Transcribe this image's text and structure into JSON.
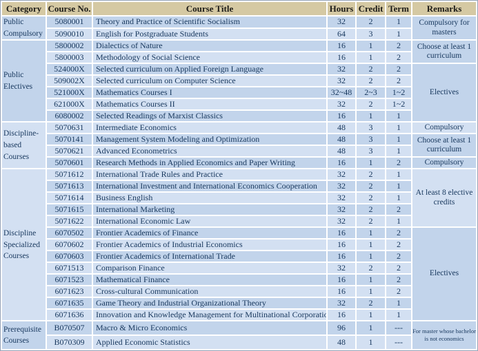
{
  "colors": {
    "header_bg": "#d5c9a3",
    "row_dark": "#c2d4eb",
    "row_light": "#d3e0f2",
    "merged_cell_bg": "#c9daee",
    "grid_line": "#ffffff",
    "text": "#17375d"
  },
  "table": {
    "headers": [
      "Category",
      "Course No.",
      "Course Title",
      "Hours",
      "Credit",
      "Term",
      "Remarks"
    ],
    "rows": [
      {
        "course_no": "5080001",
        "title": "Theory and Practice of Scientific Socialism",
        "hours": "32",
        "credit": "2",
        "term": "1",
        "category": {
          "label": "Public Compulsory",
          "span": 2
        },
        "remark": {
          "label": "Compulsory for masters",
          "span": 2
        }
      },
      {
        "course_no": "5090010",
        "title": "English for Postgraduate Students",
        "hours": "64",
        "credit": "3",
        "term": "1"
      },
      {
        "course_no": "5800002",
        "title": "Dialectics of Nature",
        "hours": "16",
        "credit": "1",
        "term": "2",
        "category": {
          "label": "Public Electives",
          "span": 7
        },
        "remark": {
          "label": "Choose at least 1 curriculum",
          "span": 2
        }
      },
      {
        "course_no": "5800003",
        "title": "Methodology of Social Science",
        "hours": "16",
        "credit": "1",
        "term": "2"
      },
      {
        "course_no": "524000X",
        "title": "Selected curriculum on Applied Foreign Language",
        "hours": "32",
        "credit": "2",
        "term": "2",
        "remark": {
          "label": "Electives",
          "span": 5
        }
      },
      {
        "course_no": "509002X",
        "title": "Selected curriculum on Computer Science",
        "hours": "32",
        "credit": "2",
        "term": "2"
      },
      {
        "course_no": "521000X",
        "title": "Mathematics Courses  I",
        "hours": "32~48",
        "credit": "2~3",
        "term": "1~2"
      },
      {
        "course_no": "621000X",
        "title": "Mathematics Courses II",
        "hours": "32",
        "credit": "2",
        "term": "1~2"
      },
      {
        "course_no": "6080002",
        "title": "Selected Readings of Marxist Classics",
        "hours": "16",
        "credit": "1",
        "term": "1"
      },
      {
        "course_no": "5070631",
        "title": "Intermediate Economics",
        "hours": "48",
        "credit": "3",
        "term": "1",
        "category": {
          "label": "Discipline-based Courses",
          "span": 4
        },
        "remark": {
          "label": "Compulsory",
          "span": 1
        }
      },
      {
        "course_no": "5070141",
        "title": "Management System Modeling and Optimization",
        "hours": "48",
        "credit": "3",
        "term": "1",
        "remark": {
          "label": "Choose at least 1 curriculum",
          "span": 2
        }
      },
      {
        "course_no": "5070621",
        "title": "Advanced Econometrics",
        "hours": "48",
        "credit": "3",
        "term": "1"
      },
      {
        "course_no": "5070601",
        "title": "Research Methods in Applied Economics and Paper Writing",
        "hours": "16",
        "credit": "1",
        "term": "2",
        "remark": {
          "label": "Compulsory",
          "span": 1
        }
      },
      {
        "course_no": "5071612",
        "title": "International Trade Rules and Practice",
        "hours": "32",
        "credit": "2",
        "term": "1",
        "category": {
          "label": "Discipline Specialized Courses",
          "span": 13
        },
        "remark": {
          "label": "At least 8 elective credits",
          "span": 5
        }
      },
      {
        "course_no": "5071613",
        "title": "International Investment and International Economics Cooperation",
        "hours": "32",
        "credit": "2",
        "term": "1"
      },
      {
        "course_no": "5071614",
        "title": "Business English",
        "hours": "32",
        "credit": "2",
        "term": "1"
      },
      {
        "course_no": "5071615",
        "title": "International Marketing",
        "hours": "32",
        "credit": "2",
        "term": "2"
      },
      {
        "course_no": "5071622",
        "title": "International Economic Law",
        "hours": "32",
        "credit": "2",
        "term": "1"
      },
      {
        "course_no": "6070502",
        "title": "Frontier Academics  of Finance",
        "hours": "16",
        "credit": "1",
        "term": "2",
        "remark": {
          "label": "Electives",
          "span": 8
        }
      },
      {
        "course_no": "6070602",
        "title": "Frontier Academics  of Industrial Economics",
        "hours": "16",
        "credit": "1",
        "term": "2"
      },
      {
        "course_no": "6070603",
        "title": "Frontier Academics  of International Trade",
        "hours": "16",
        "credit": "1",
        "term": "2"
      },
      {
        "course_no": "6071513",
        "title": "Comparison Finance",
        "hours": "32",
        "credit": "2",
        "term": "2"
      },
      {
        "course_no": "6071523",
        "title": "Mathematical Finance",
        "hours": "16",
        "credit": "1",
        "term": "2"
      },
      {
        "course_no": "6071623",
        "title": "Cross-cultural Communication",
        "hours": "16",
        "credit": "1",
        "term": "2"
      },
      {
        "course_no": "6071635",
        "title": "Game Theory and Industrial Organizational Theory",
        "hours": "32",
        "credit": "2",
        "term": "1"
      },
      {
        "course_no": "6071636",
        "title": "Innovation and Knowledge Management for Multinational Corporation",
        "hours": "16",
        "credit": "1",
        "term": "1"
      },
      {
        "course_no": "B070507",
        "title": "Macro & Micro Economics",
        "hours": "96",
        "credit": "1",
        "term": "---",
        "category": {
          "label": "Prerequisite Courses",
          "span": 2
        },
        "remark": {
          "label": "For master whose bachelor is not economics",
          "span": 2,
          "small": true
        }
      },
      {
        "course_no": "B070309",
        "title": "Applied Economic Statistics",
        "hours": "48",
        "credit": "1",
        "term": "---"
      }
    ]
  }
}
